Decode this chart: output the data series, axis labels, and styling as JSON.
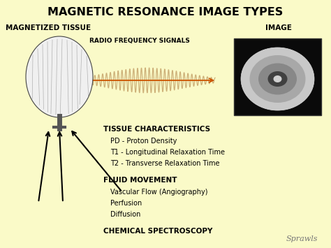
{
  "title": "MAGNETIC RESONANCE IMAGE TYPES",
  "bg_color": "#FAFAC8",
  "title_fontsize": 11.5,
  "left_label": "MAGNETIZED TISSUE",
  "right_label": "IMAGE",
  "rf_label": "RADIO FREQUENCY SIGNALS",
  "sections": [
    {
      "header": "TISSUE CHARACTERISTICS",
      "items": [
        "PD - Proton Density",
        "T1 - Longitudinal Relaxation Time",
        "T2 - Transverse Relaxation Time"
      ]
    },
    {
      "header": "FLUID MOVEMENT",
      "items": [
        "Vascular Flow (Angiography)",
        "Perfusion",
        "Diffusion"
      ]
    },
    {
      "header": "CHEMICAL SPECTROSCOPY",
      "items": []
    }
  ],
  "watermark": "Sprawls",
  "rf_arrow_color": "#CC5500",
  "rf_wave_color": "#C8A870"
}
